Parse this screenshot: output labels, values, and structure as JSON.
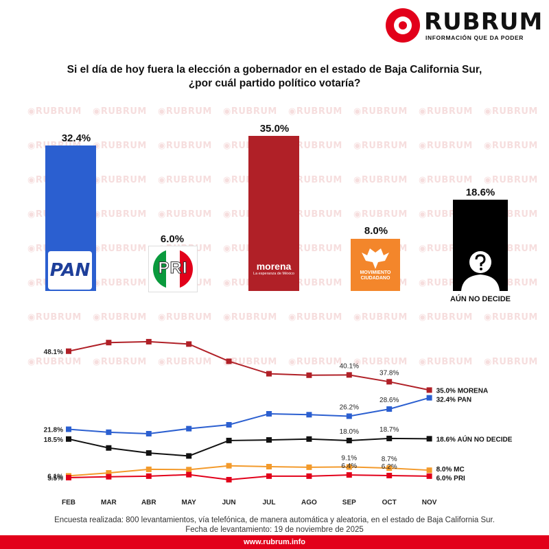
{
  "brand": {
    "name": "RUBRUM",
    "tagline": "INFORMACIÓN QUE DA PODER",
    "url": "www.rubrum.info"
  },
  "title_line1": "Si el día de hoy fuera la elección a gobernador en el estado de Baja California Sur,",
  "title_line2": "¿por cuál partido político votaría?",
  "colors": {
    "PAN": "#2b5fd0",
    "PRI": "#e2001a",
    "MORENA": "#b02027",
    "MC": "#f39a2b",
    "AUN_NO_DECIDE": "#111111",
    "brand": "#e2001a"
  },
  "bar_chart": {
    "type": "bar",
    "categories": [
      "PAN",
      "PRI",
      "MORENA",
      "MC",
      "AÚN NO DECIDE"
    ],
    "values": [
      32.4,
      6.0,
      35.0,
      8.0,
      18.6
    ],
    "value_labels": [
      "32.4%",
      "6.0%",
      "35.0%",
      "8.0%",
      "18.6%"
    ],
    "logos": {
      "pan": "PAN",
      "pri": "PRI",
      "morena": "morena",
      "morena_sub": "La esperanza de México",
      "mc_line1": "MOVIMIENTO",
      "mc_line2": "CIUDADANO",
      "undecided": "AÚN NO DECIDE"
    }
  },
  "chart_data": {
    "type": "line",
    "x": [
      "FEB",
      "MAR",
      "ABR",
      "MAY",
      "JUN",
      "JUL",
      "AGO",
      "SEP",
      "OCT",
      "NOV"
    ],
    "series": [
      {
        "name": "MORENA",
        "color": "#b02027",
        "values": [
          48.1,
          51.0,
          51.3,
          50.5,
          44.7,
          40.5,
          40.0,
          40.1,
          37.8,
          35.0
        ]
      },
      {
        "name": "PAN",
        "color": "#2b5fd0",
        "values": [
          21.8,
          20.8,
          20.3,
          22.0,
          23.3,
          27.0,
          26.7,
          26.2,
          28.6,
          32.4
        ]
      },
      {
        "name": "AÚN NO DECIDE",
        "color": "#111111",
        "values": [
          18.5,
          15.5,
          13.8,
          12.8,
          18.0,
          18.2,
          18.5,
          18.0,
          18.7,
          18.6
        ]
      },
      {
        "name": "MC",
        "color": "#f39a2b",
        "values": [
          6.1,
          7.1,
          8.3,
          8.2,
          9.5,
          9.2,
          9.0,
          9.1,
          8.7,
          8.0
        ]
      },
      {
        "name": "PRI",
        "color": "#e2001a",
        "values": [
          5.5,
          5.8,
          6.0,
          6.5,
          4.8,
          6.0,
          6.0,
          6.4,
          6.2,
          6.0
        ]
      }
    ],
    "point_labels": [
      {
        "series": "MORENA",
        "x": "FEB",
        "text": "48.1%"
      },
      {
        "series": "MORENA",
        "x": "SEP",
        "text": "40.1%"
      },
      {
        "series": "MORENA",
        "x": "OCT",
        "text": "37.8%"
      },
      {
        "series": "PAN",
        "x": "FEB",
        "text": "21.8%"
      },
      {
        "series": "PAN",
        "x": "SEP",
        "text": "26.2%"
      },
      {
        "series": "PAN",
        "x": "OCT",
        "text": "28.6%"
      },
      {
        "series": "AÚN NO DECIDE",
        "x": "FEB",
        "text": "18.5%"
      },
      {
        "series": "AÚN NO DECIDE",
        "x": "SEP",
        "text": "18.0%"
      },
      {
        "series": "AÚN NO DECIDE",
        "x": "OCT",
        "text": "18.7%"
      },
      {
        "series": "MC",
        "x": "FEB",
        "text": "6.1%"
      },
      {
        "series": "MC",
        "x": "SEP",
        "text": "9.1%"
      },
      {
        "series": "MC",
        "x": "OCT",
        "text": "8.7%"
      },
      {
        "series": "PRI",
        "x": "FEB",
        "text": "5.5%"
      },
      {
        "series": "PRI",
        "x": "SEP",
        "text": "6.4%"
      },
      {
        "series": "PRI",
        "x": "OCT",
        "text": "6.2%"
      }
    ],
    "end_labels": [
      {
        "series": "MORENA",
        "text": "35.0% MORENA"
      },
      {
        "series": "PAN",
        "text": "32.4% PAN"
      },
      {
        "series": "AÚN NO DECIDE",
        "text": "18.6% AÚN NO DECIDE"
      },
      {
        "series": "MC",
        "text": "8.0% MC"
      },
      {
        "series": "PRI",
        "text": "6.0% PRI"
      }
    ],
    "grid": false
  },
  "footer": {
    "line1": "Encuesta realizada: 800 levantamientos, vía telefónica, de manera automática y aleatoria, en el estado de Baja California Sur.",
    "line2": "Fecha de levantamiento: 19 de noviembre de 2025"
  }
}
